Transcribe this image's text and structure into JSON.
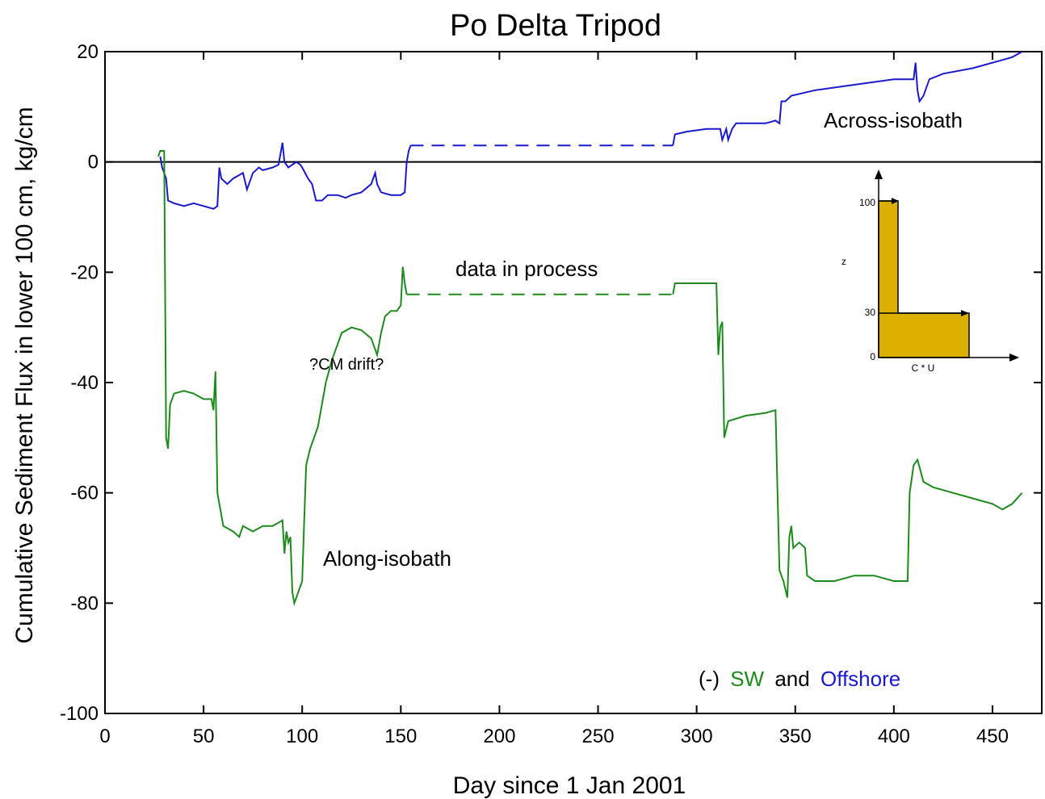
{
  "chart_data": {
    "type": "line",
    "title": "Po Delta Tripod",
    "xlabel": "Day since 1 Jan 2001",
    "ylabel": "Cumulative Sediment Flux in lower 100 cm, kg/cm",
    "xlim": [
      0,
      475
    ],
    "ylim": [
      -100,
      20
    ],
    "xticks": [
      0,
      50,
      100,
      150,
      200,
      250,
      300,
      350,
      400,
      450
    ],
    "yticks": [
      20,
      0,
      -20,
      -40,
      -60,
      -80,
      -100
    ],
    "grid": false,
    "series": [
      {
        "name": "Across-isobath",
        "color": "#1a1acc",
        "points": [
          [
            28,
            1
          ],
          [
            29,
            -1
          ],
          [
            30,
            -2
          ],
          [
            31,
            -3
          ],
          [
            32,
            -7
          ],
          [
            35,
            -7.5
          ],
          [
            40,
            -8
          ],
          [
            45,
            -7.5
          ],
          [
            50,
            -8
          ],
          [
            55,
            -8.5
          ],
          [
            57,
            -8
          ],
          [
            58,
            -1
          ],
          [
            59,
            -3
          ],
          [
            62,
            -4
          ],
          [
            65,
            -3
          ],
          [
            70,
            -2
          ],
          [
            72,
            -5
          ],
          [
            75,
            -2
          ],
          [
            78,
            -1
          ],
          [
            80,
            -1.5
          ],
          [
            85,
            -1
          ],
          [
            88,
            -0.5
          ],
          [
            90,
            3.5
          ],
          [
            91,
            0
          ],
          [
            93,
            -1
          ],
          [
            95,
            -0.5
          ],
          [
            97,
            0
          ],
          [
            99,
            -0.5
          ],
          [
            100,
            -1
          ],
          [
            103,
            -3
          ],
          [
            105,
            -4
          ],
          [
            107,
            -7
          ],
          [
            110,
            -7
          ],
          [
            113,
            -6
          ],
          [
            118,
            -6
          ],
          [
            122,
            -6.5
          ],
          [
            125,
            -6
          ],
          [
            130,
            -5.5
          ],
          [
            135,
            -4
          ],
          [
            137,
            -2
          ],
          [
            138,
            -4
          ],
          [
            140,
            -5.5
          ],
          [
            145,
            -6
          ],
          [
            150,
            -6
          ],
          [
            152,
            -5.5
          ],
          [
            153,
            0
          ],
          [
            154,
            2
          ],
          [
            155,
            3
          ]
        ],
        "gap": [
          [
            155,
            3
          ],
          [
            288,
            3
          ]
        ],
        "points2": [
          [
            288,
            3
          ],
          [
            289,
            5
          ],
          [
            295,
            5.5
          ],
          [
            305,
            6
          ],
          [
            312,
            6
          ],
          [
            313,
            4
          ],
          [
            315,
            6
          ],
          [
            316,
            4
          ],
          [
            318,
            6
          ],
          [
            320,
            7
          ],
          [
            335,
            7
          ],
          [
            340,
            7.5
          ],
          [
            342,
            7
          ],
          [
            343,
            11
          ],
          [
            345,
            11
          ],
          [
            348,
            12
          ],
          [
            360,
            13
          ],
          [
            380,
            14
          ],
          [
            400,
            15
          ],
          [
            410,
            15
          ],
          [
            411,
            18
          ],
          [
            412,
            13
          ],
          [
            413,
            11
          ],
          [
            415,
            12
          ],
          [
            418,
            15
          ],
          [
            425,
            16
          ],
          [
            440,
            17
          ],
          [
            455,
            18.5
          ],
          [
            460,
            19
          ],
          [
            465,
            20
          ]
        ]
      },
      {
        "name": "Along-isobath",
        "color": "#1e8a1e",
        "points": [
          [
            27,
            1
          ],
          [
            28,
            2
          ],
          [
            30,
            2
          ],
          [
            31,
            -50
          ],
          [
            32,
            -52
          ],
          [
            33,
            -44
          ],
          [
            35,
            -42
          ],
          [
            40,
            -41.5
          ],
          [
            45,
            -42
          ],
          [
            50,
            -43
          ],
          [
            54,
            -43
          ],
          [
            55,
            -45
          ],
          [
            56,
            -38
          ],
          [
            57,
            -60
          ],
          [
            58,
            -62
          ],
          [
            59,
            -64
          ],
          [
            60,
            -66
          ],
          [
            65,
            -67
          ],
          [
            68,
            -68
          ],
          [
            70,
            -66
          ],
          [
            75,
            -67
          ],
          [
            80,
            -66
          ],
          [
            85,
            -66
          ],
          [
            90,
            -65
          ],
          [
            91,
            -71
          ],
          [
            92,
            -67
          ],
          [
            93,
            -69
          ],
          [
            94,
            -68
          ],
          [
            95,
            -78
          ],
          [
            96,
            -80
          ],
          [
            97,
            -79
          ],
          [
            98,
            -78
          ],
          [
            100,
            -76
          ],
          [
            101,
            -65
          ],
          [
            102,
            -55
          ],
          [
            104,
            -52
          ],
          [
            106,
            -50
          ],
          [
            108,
            -48
          ],
          [
            110,
            -44
          ],
          [
            112,
            -40
          ],
          [
            115,
            -36
          ],
          [
            118,
            -33
          ],
          [
            120,
            -31
          ],
          [
            125,
            -30
          ],
          [
            130,
            -30.5
          ],
          [
            135,
            -32
          ],
          [
            138,
            -35
          ],
          [
            140,
            -31
          ],
          [
            142,
            -28
          ],
          [
            145,
            -27
          ],
          [
            148,
            -27
          ],
          [
            150,
            -26
          ],
          [
            151,
            -19
          ],
          [
            152,
            -22
          ],
          [
            153,
            -24
          ]
        ],
        "gap": [
          [
            153,
            -24
          ],
          [
            288,
            -24
          ]
        ],
        "points2": [
          [
            288,
            -24
          ],
          [
            289,
            -22
          ],
          [
            300,
            -22
          ],
          [
            310,
            -22
          ],
          [
            311,
            -35
          ],
          [
            312,
            -30
          ],
          [
            313,
            -29
          ],
          [
            314,
            -50
          ],
          [
            316,
            -47
          ],
          [
            325,
            -46
          ],
          [
            335,
            -45.5
          ],
          [
            340,
            -45
          ],
          [
            341,
            -60
          ],
          [
            342,
            -74
          ],
          [
            344,
            -76
          ],
          [
            346,
            -79
          ],
          [
            347,
            -68
          ],
          [
            348,
            -66
          ],
          [
            349,
            -70
          ],
          [
            352,
            -69
          ],
          [
            355,
            -70
          ],
          [
            356,
            -75
          ],
          [
            360,
            -76
          ],
          [
            370,
            -76
          ],
          [
            380,
            -75
          ],
          [
            390,
            -75
          ],
          [
            400,
            -76
          ],
          [
            407,
            -76
          ],
          [
            408,
            -60
          ],
          [
            410,
            -55
          ],
          [
            412,
            -54
          ],
          [
            415,
            -58
          ],
          [
            420,
            -59
          ],
          [
            430,
            -60
          ],
          [
            440,
            -61
          ],
          [
            450,
            -62
          ],
          [
            455,
            -63
          ],
          [
            460,
            -62
          ],
          [
            465,
            -60
          ]
        ]
      }
    ],
    "annotations": {
      "across": "Across-isobath",
      "along": "Along-isobath",
      "process": "data in process",
      "drift": "?CM drift?",
      "legend_prefix": "(-)",
      "legend_sw": "SW",
      "legend_and": "and",
      "legend_offshore": "Offshore"
    },
    "inset": {
      "z_label": "z",
      "x_label": "C * U",
      "ticks": [
        "100",
        "30",
        "0"
      ],
      "fill_color": "#ddb000"
    }
  }
}
